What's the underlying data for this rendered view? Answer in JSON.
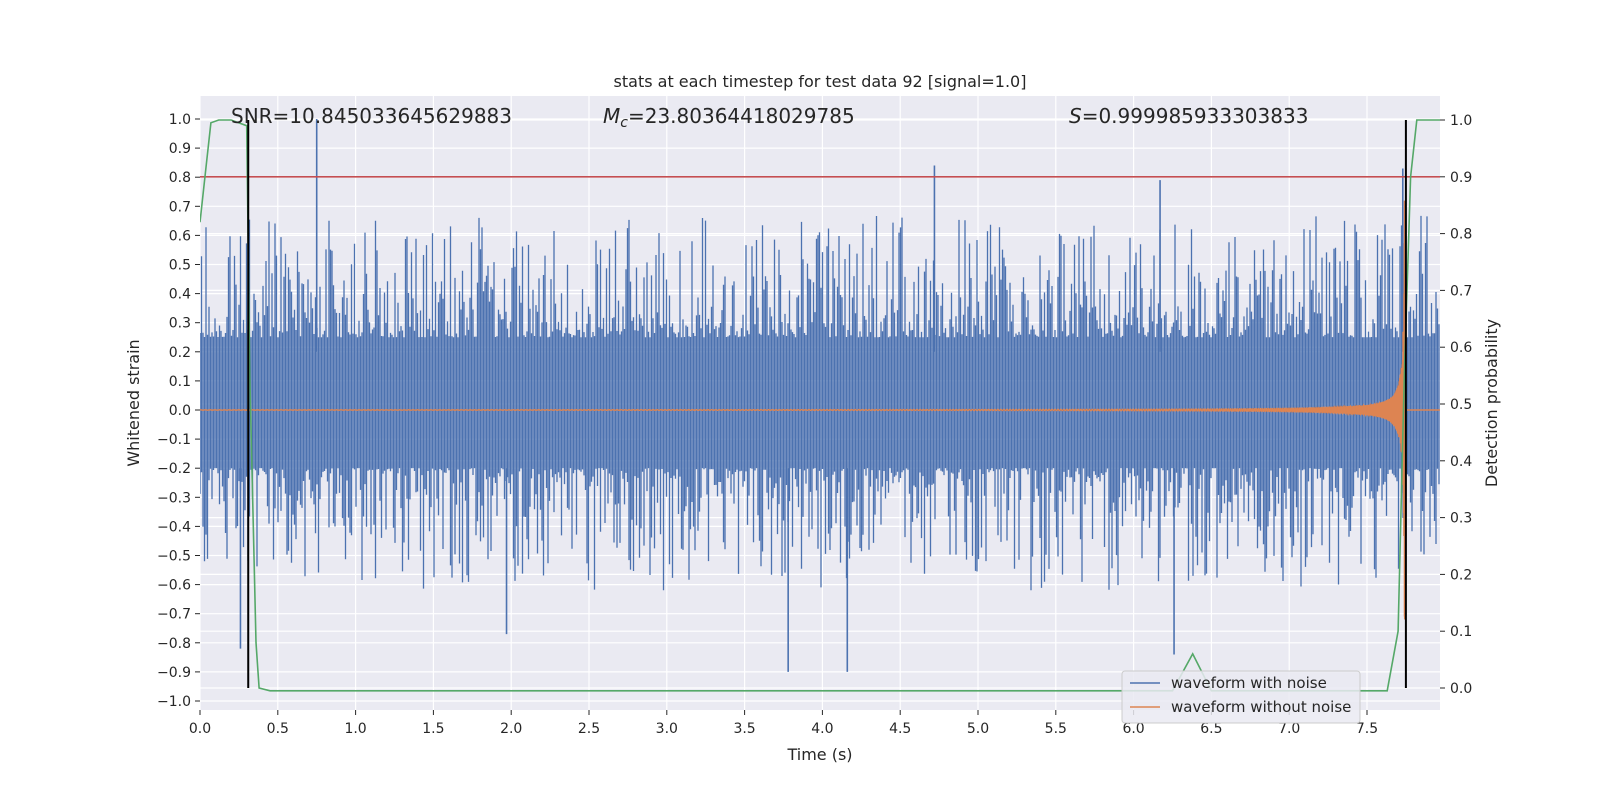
{
  "chart_data": {
    "type": "line",
    "title": "stats at each timestep for test data 92 [signal=1.0]",
    "xlabel": "Time (s)",
    "ylabel": "Whitened strain",
    "ylabel_right": "Detection probability",
    "xlim": [
      0.0,
      8.0
    ],
    "ylim": [
      -1.0,
      1.07
    ],
    "ylim_right": [
      -0.09,
      1.03
    ],
    "xticks": [
      "0.0",
      "0.5",
      "1.0",
      "1.5",
      "2.0",
      "2.5",
      "3.0",
      "3.5",
      "4.0",
      "4.5",
      "5.0",
      "5.5",
      "6.0",
      "6.5",
      "7.0",
      "7.5"
    ],
    "yticks": [
      "1.0",
      "0.9",
      "0.8",
      "0.7",
      "0.6",
      "0.5",
      "0.4",
      "0.3",
      "0.2",
      "0.1",
      "0.0",
      "−0.1",
      "−0.2",
      "−0.3",
      "−0.4",
      "−0.5",
      "−0.6",
      "−0.7",
      "−0.8",
      "−0.9",
      "−1.0"
    ],
    "yticks_right": [
      "1.0",
      "0.9",
      "0.8",
      "0.7",
      "0.6",
      "0.5",
      "0.4",
      "0.3",
      "0.2",
      "0.1",
      "0.0"
    ],
    "grid": true,
    "background": "#eaeaf2",
    "annotations": {
      "snr": "SNR=10.845033645629883",
      "mc_value": "=23.80364418029785",
      "mc_symbol": "M",
      "mc_sub": "c",
      "s_symbol": "S",
      "s_value": "=0.999985933303833"
    },
    "threshold_line": {
      "axis": "right",
      "value": 0.9,
      "color": "#c44e52"
    },
    "vertical_markers": {
      "x": [
        0.31,
        7.75
      ],
      "color": "#000000"
    },
    "series": [
      {
        "name": "waveform with noise",
        "color": "#4c72b0",
        "axis": "left",
        "x_range": [
          0.0,
          8.0
        ],
        "band_core": [
          -0.2,
          0.25
        ],
        "peaks_up": [
          [
            0.75,
            1.0
          ],
          [
            4.72,
            0.84
          ],
          [
            6.17,
            0.79
          ],
          [
            7.73,
            0.83
          ]
        ],
        "peaks_down": [
          [
            0.26,
            -0.82
          ],
          [
            1.97,
            -0.77
          ],
          [
            3.78,
            -0.9
          ],
          [
            4.16,
            -0.9
          ],
          [
            6.26,
            -0.84
          ]
        ]
      },
      {
        "name": "waveform without noise",
        "color": "#dd8452",
        "axis": "left",
        "description_points": [
          [
            0.0,
            0.003
          ],
          [
            2.0,
            0.006
          ],
          [
            4.0,
            0.012
          ],
          [
            6.0,
            0.04
          ],
          [
            7.0,
            0.1
          ],
          [
            7.5,
            0.3
          ],
          [
            7.7,
            0.72
          ],
          [
            7.75,
            0.0
          ]
        ]
      },
      {
        "name": "detection probability",
        "color": "#55a868",
        "axis": "right",
        "x": [
          0.0,
          0.04,
          0.07,
          0.12,
          0.2,
          0.3,
          0.32,
          0.36,
          0.38,
          0.45,
          6.25,
          6.38,
          6.5,
          7.63,
          7.7,
          7.74,
          7.78,
          7.82,
          8.0
        ],
        "y": [
          0.82,
          0.92,
          0.995,
          1.0,
          1.0,
          0.99,
          0.55,
          0.08,
          0.0,
          -0.005,
          -0.005,
          0.06,
          -0.005,
          -0.005,
          0.1,
          0.55,
          0.9,
          1.0,
          1.0
        ]
      }
    ],
    "legend": {
      "position": "lower right",
      "entries": [
        "waveform with noise",
        "waveform without noise"
      ]
    }
  }
}
